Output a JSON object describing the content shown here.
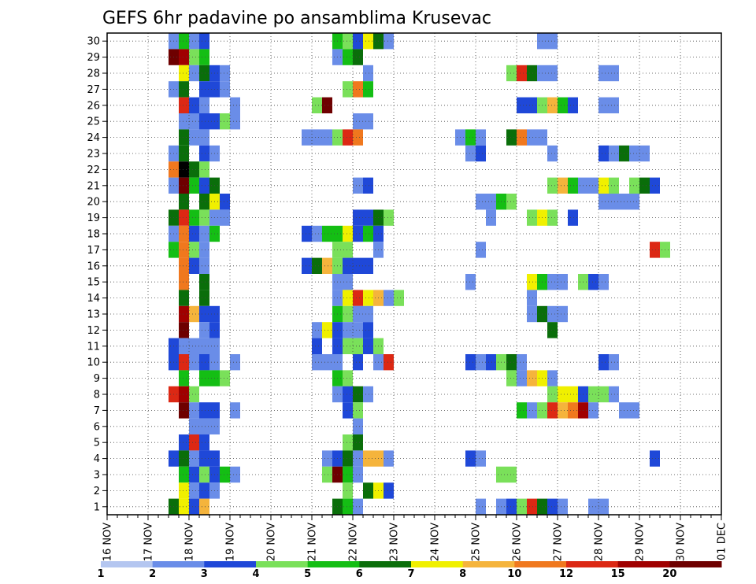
{
  "chart_data": {
    "type": "heatmap",
    "title": "GEFS 6hr padavine po ansamblima Krusevac",
    "x_tick_labels": [
      "16 NOV",
      "17 NOV",
      "18 NOV",
      "19 NOV",
      "20 NOV",
      "21 NOV",
      "22 NOV",
      "23 NOV",
      "24 NOV",
      "25 NOV",
      "26 NOV",
      "27 NOV",
      "28 NOV",
      "29 NOV",
      "30 NOV",
      "01 DEC"
    ],
    "y_tick_labels": [
      "1",
      "2",
      "3",
      "4",
      "5",
      "6",
      "7",
      "8",
      "9",
      "10",
      "11",
      "12",
      "13",
      "14",
      "15",
      "16",
      "17",
      "18",
      "19",
      "20",
      "21",
      "22",
      "23",
      "24",
      "25",
      "26",
      "27",
      "28",
      "29",
      "30"
    ],
    "xlim": [
      0,
      60
    ],
    "ylim": [
      0.5,
      30.5
    ],
    "grid": true,
    "colorbar": {
      "labels": [
        "1",
        "2",
        "3",
        "4",
        "5",
        "6",
        "7",
        "8",
        "10",
        "12",
        "15",
        "20"
      ],
      "colors": [
        "#b4c6f0",
        "#6a8de8",
        "#1f48d8",
        "#7ae05a",
        "#14be14",
        "#0a6e0a",
        "#f0f000",
        "#f5b43c",
        "#f0781e",
        "#dc2814",
        "#a00000",
        "#6e0000"
      ]
    },
    "cells": [
      [
        6,
        30,
        1
      ],
      [
        7,
        30,
        4
      ],
      [
        8,
        30,
        1
      ],
      [
        9,
        30,
        2
      ],
      [
        6,
        29,
        11
      ],
      [
        7,
        29,
        10
      ],
      [
        8,
        29,
        3
      ],
      [
        9,
        29,
        4
      ],
      [
        7,
        28,
        6
      ],
      [
        8,
        28,
        1
      ],
      [
        9,
        28,
        5
      ],
      [
        10,
        28,
        2
      ],
      [
        11,
        28,
        1
      ],
      [
        6,
        27,
        1
      ],
      [
        7,
        27,
        5
      ],
      [
        9,
        27,
        2
      ],
      [
        10,
        27,
        2
      ],
      [
        11,
        27,
        1
      ],
      [
        7,
        26,
        9
      ],
      [
        8,
        26,
        2
      ],
      [
        9,
        26,
        1
      ],
      [
        12,
        26,
        1
      ],
      [
        7,
        25,
        1
      ],
      [
        8,
        25,
        1
      ],
      [
        9,
        25,
        2
      ],
      [
        10,
        25,
        2
      ],
      [
        11,
        25,
        3
      ],
      [
        12,
        25,
        1
      ],
      [
        7,
        24,
        5
      ],
      [
        8,
        24,
        1
      ],
      [
        9,
        24,
        1
      ],
      [
        6,
        23,
        1
      ],
      [
        7,
        23,
        5
      ],
      [
        9,
        23,
        2
      ],
      [
        10,
        23,
        1
      ],
      [
        6,
        22,
        8
      ],
      [
        7,
        22,
        12
      ],
      [
        8,
        22,
        5
      ],
      [
        9,
        22,
        3
      ],
      [
        6,
        21,
        1
      ],
      [
        7,
        21,
        11
      ],
      [
        8,
        21,
        4
      ],
      [
        9,
        21,
        2
      ],
      [
        10,
        21,
        5
      ],
      [
        7,
        20,
        5
      ],
      [
        9,
        20,
        5
      ],
      [
        10,
        20,
        6
      ],
      [
        11,
        20,
        2
      ],
      [
        6,
        19,
        5
      ],
      [
        7,
        19,
        9
      ],
      [
        8,
        19,
        4
      ],
      [
        9,
        19,
        3
      ],
      [
        10,
        19,
        1
      ],
      [
        11,
        19,
        1
      ],
      [
        6,
        18,
        1
      ],
      [
        7,
        18,
        8
      ],
      [
        8,
        18,
        2
      ],
      [
        9,
        18,
        1
      ],
      [
        10,
        18,
        4
      ],
      [
        6,
        17,
        4
      ],
      [
        7,
        17,
        8
      ],
      [
        8,
        17,
        3
      ],
      [
        9,
        17,
        1
      ],
      [
        7,
        16,
        8
      ],
      [
        8,
        16,
        2
      ],
      [
        9,
        16,
        1
      ],
      [
        7,
        15,
        8
      ],
      [
        9,
        15,
        5
      ],
      [
        7,
        14,
        5
      ],
      [
        9,
        14,
        5
      ],
      [
        7,
        13,
        10
      ],
      [
        8,
        13,
        7
      ],
      [
        9,
        13,
        2
      ],
      [
        10,
        13,
        2
      ],
      [
        7,
        12,
        11
      ],
      [
        9,
        12,
        1
      ],
      [
        10,
        12,
        2
      ],
      [
        7,
        11,
        1
      ],
      [
        8,
        11,
        1
      ],
      [
        9,
        11,
        1
      ],
      [
        10,
        11,
        1
      ],
      [
        6,
        10,
        2
      ],
      [
        6,
        11,
        2
      ],
      [
        7,
        10,
        9
      ],
      [
        8,
        10,
        1
      ],
      [
        9,
        10,
        2
      ],
      [
        10,
        10,
        1
      ],
      [
        12,
        10,
        1
      ],
      [
        7,
        9,
        4
      ],
      [
        9,
        9,
        4
      ],
      [
        10,
        9,
        4
      ],
      [
        11,
        9,
        3
      ],
      [
        6,
        8,
        9
      ],
      [
        7,
        8,
        10
      ],
      [
        8,
        8,
        3
      ],
      [
        7,
        7,
        11
      ],
      [
        8,
        7,
        1
      ],
      [
        9,
        7,
        2
      ],
      [
        10,
        7,
        2
      ],
      [
        12,
        7,
        1
      ],
      [
        8,
        6,
        1
      ],
      [
        9,
        6,
        1
      ],
      [
        10,
        6,
        1
      ],
      [
        7,
        5,
        2
      ],
      [
        8,
        5,
        9
      ],
      [
        9,
        5,
        2
      ],
      [
        6,
        4,
        2
      ],
      [
        7,
        4,
        5
      ],
      [
        8,
        4,
        1
      ],
      [
        9,
        4,
        2
      ],
      [
        10,
        4,
        2
      ],
      [
        7,
        3,
        4
      ],
      [
        8,
        3,
        2
      ],
      [
        9,
        3,
        3
      ],
      [
        10,
        3,
        2
      ],
      [
        11,
        3,
        4
      ],
      [
        12,
        3,
        1
      ],
      [
        7,
        2,
        6
      ],
      [
        8,
        2,
        1
      ],
      [
        9,
        2,
        2
      ],
      [
        10,
        2,
        1
      ],
      [
        6,
        1,
        5
      ],
      [
        7,
        1,
        6
      ],
      [
        8,
        1,
        2
      ],
      [
        9,
        1,
        7
      ],
      [
        22,
        30,
        4
      ],
      [
        23,
        30,
        3
      ],
      [
        24,
        30,
        2
      ],
      [
        25,
        30,
        6
      ],
      [
        26,
        30,
        5
      ],
      [
        27,
        30,
        1
      ],
      [
        22,
        29,
        1
      ],
      [
        23,
        29,
        4
      ],
      [
        24,
        29,
        5
      ],
      [
        25,
        28,
        1
      ],
      [
        23,
        27,
        3
      ],
      [
        24,
        27,
        8
      ],
      [
        25,
        27,
        4
      ],
      [
        20,
        26,
        3
      ],
      [
        21,
        26,
        11
      ],
      [
        24,
        25,
        1
      ],
      [
        25,
        25,
        1
      ],
      [
        19,
        24,
        1
      ],
      [
        20,
        24,
        1
      ],
      [
        21,
        24,
        1
      ],
      [
        22,
        24,
        3
      ],
      [
        23,
        24,
        9
      ],
      [
        24,
        24,
        8
      ],
      [
        24,
        21,
        1
      ],
      [
        25,
        21,
        2
      ],
      [
        24,
        19,
        2
      ],
      [
        25,
        19,
        2
      ],
      [
        26,
        19,
        5
      ],
      [
        27,
        19,
        3
      ],
      [
        19,
        18,
        2
      ],
      [
        20,
        18,
        1
      ],
      [
        21,
        18,
        4
      ],
      [
        22,
        18,
        4
      ],
      [
        23,
        18,
        6
      ],
      [
        24,
        18,
        2
      ],
      [
        25,
        18,
        4
      ],
      [
        26,
        18,
        2
      ],
      [
        22,
        17,
        3
      ],
      [
        23,
        17,
        3
      ],
      [
        26,
        17,
        1
      ],
      [
        19,
        16,
        2
      ],
      [
        20,
        16,
        5
      ],
      [
        21,
        16,
        7
      ],
      [
        22,
        16,
        3
      ],
      [
        23,
        16,
        2
      ],
      [
        24,
        16,
        2
      ],
      [
        25,
        16,
        2
      ],
      [
        22,
        15,
        1
      ],
      [
        23,
        15,
        1
      ],
      [
        22,
        14,
        1
      ],
      [
        23,
        14,
        6
      ],
      [
        24,
        14,
        9
      ],
      [
        25,
        14,
        6
      ],
      [
        26,
        14,
        7
      ],
      [
        27,
        14,
        1
      ],
      [
        28,
        14,
        3
      ],
      [
        22,
        13,
        4
      ],
      [
        23,
        13,
        3
      ],
      [
        24,
        13,
        1
      ],
      [
        25,
        13,
        1
      ],
      [
        20,
        12,
        1
      ],
      [
        21,
        12,
        6
      ],
      [
        22,
        12,
        2
      ],
      [
        23,
        12,
        1
      ],
      [
        24,
        12,
        1
      ],
      [
        25,
        12,
        2
      ],
      [
        20,
        11,
        2
      ],
      [
        22,
        11,
        2
      ],
      [
        23,
        11,
        3
      ],
      [
        24,
        11,
        3
      ],
      [
        25,
        11,
        2
      ],
      [
        26,
        11,
        3
      ],
      [
        20,
        10,
        1
      ],
      [
        21,
        10,
        1
      ],
      [
        22,
        10,
        1
      ],
      [
        24,
        10,
        2
      ],
      [
        26,
        10,
        1
      ],
      [
        27,
        10,
        9
      ],
      [
        22,
        9,
        4
      ],
      [
        23,
        9,
        3
      ],
      [
        22,
        8,
        1
      ],
      [
        23,
        8,
        2
      ],
      [
        24,
        8,
        5
      ],
      [
        25,
        8,
        1
      ],
      [
        23,
        7,
        2
      ],
      [
        24,
        7,
        3
      ],
      [
        24,
        6,
        1
      ],
      [
        23,
        5,
        3
      ],
      [
        24,
        5,
        5
      ],
      [
        21,
        4,
        1
      ],
      [
        22,
        4,
        2
      ],
      [
        23,
        4,
        5
      ],
      [
        24,
        4,
        1
      ],
      [
        25,
        4,
        7
      ],
      [
        26,
        4,
        7
      ],
      [
        27,
        4,
        1
      ],
      [
        21,
        3,
        3
      ],
      [
        22,
        3,
        11
      ],
      [
        23,
        3,
        4
      ],
      [
        24,
        3,
        1
      ],
      [
        23,
        2,
        3
      ],
      [
        25,
        2,
        5
      ],
      [
        26,
        2,
        6
      ],
      [
        27,
        2,
        2
      ],
      [
        22,
        1,
        5
      ],
      [
        23,
        1,
        4
      ],
      [
        24,
        1,
        1
      ],
      [
        42,
        30,
        1
      ],
      [
        43,
        30,
        1
      ],
      [
        39,
        28,
        3
      ],
      [
        40,
        28,
        9
      ],
      [
        41,
        28,
        5
      ],
      [
        42,
        28,
        1
      ],
      [
        43,
        28,
        1
      ],
      [
        48,
        28,
        1
      ],
      [
        49,
        28,
        1
      ],
      [
        40,
        26,
        2
      ],
      [
        41,
        26,
        2
      ],
      [
        42,
        26,
        3
      ],
      [
        43,
        26,
        7
      ],
      [
        44,
        26,
        4
      ],
      [
        45,
        26,
        2
      ],
      [
        48,
        26,
        1
      ],
      [
        49,
        26,
        1
      ],
      [
        34,
        24,
        1
      ],
      [
        35,
        24,
        4
      ],
      [
        36,
        24,
        1
      ],
      [
        39,
        24,
        5
      ],
      [
        40,
        24,
        8
      ],
      [
        41,
        24,
        1
      ],
      [
        42,
        24,
        1
      ],
      [
        35,
        23,
        1
      ],
      [
        36,
        23,
        2
      ],
      [
        43,
        23,
        1
      ],
      [
        48,
        23,
        2
      ],
      [
        49,
        23,
        1
      ],
      [
        50,
        23,
        5
      ],
      [
        51,
        23,
        1
      ],
      [
        52,
        23,
        1
      ],
      [
        43,
        21,
        3
      ],
      [
        44,
        21,
        7
      ],
      [
        45,
        21,
        4
      ],
      [
        46,
        21,
        1
      ],
      [
        47,
        21,
        1
      ],
      [
        48,
        21,
        6
      ],
      [
        49,
        21,
        3
      ],
      [
        51,
        21,
        3
      ],
      [
        52,
        21,
        5
      ],
      [
        53,
        21,
        2
      ],
      [
        36,
        20,
        1
      ],
      [
        37,
        20,
        1
      ],
      [
        38,
        20,
        4
      ],
      [
        39,
        20,
        3
      ],
      [
        48,
        20,
        1
      ],
      [
        49,
        20,
        1
      ],
      [
        50,
        20,
        1
      ],
      [
        51,
        20,
        1
      ],
      [
        37,
        19,
        1
      ],
      [
        41,
        19,
        3
      ],
      [
        42,
        19,
        6
      ],
      [
        43,
        19,
        3
      ],
      [
        45,
        19,
        2
      ],
      [
        36,
        17,
        1
      ],
      [
        53,
        17,
        9
      ],
      [
        54,
        17,
        3
      ],
      [
        35,
        15,
        1
      ],
      [
        41,
        15,
        6
      ],
      [
        42,
        15,
        4
      ],
      [
        43,
        15,
        1
      ],
      [
        44,
        15,
        1
      ],
      [
        46,
        15,
        3
      ],
      [
        47,
        15,
        2
      ],
      [
        48,
        15,
        1
      ],
      [
        41,
        14,
        1
      ],
      [
        41,
        13,
        1
      ],
      [
        42,
        13,
        5
      ],
      [
        43,
        13,
        1
      ],
      [
        44,
        13,
        1
      ],
      [
        43,
        12,
        5
      ],
      [
        35,
        10,
        2
      ],
      [
        36,
        10,
        1
      ],
      [
        37,
        10,
        2
      ],
      [
        38,
        10,
        3
      ],
      [
        39,
        10,
        5
      ],
      [
        40,
        10,
        1
      ],
      [
        48,
        10,
        2
      ],
      [
        49,
        10,
        1
      ],
      [
        39,
        9,
        3
      ],
      [
        40,
        9,
        1
      ],
      [
        41,
        9,
        7
      ],
      [
        42,
        9,
        6
      ],
      [
        43,
        9,
        1
      ],
      [
        43,
        8,
        3
      ],
      [
        44,
        8,
        6
      ],
      [
        45,
        8,
        6
      ],
      [
        46,
        8,
        2
      ],
      [
        47,
        8,
        3
      ],
      [
        48,
        8,
        3
      ],
      [
        49,
        8,
        1
      ],
      [
        40,
        7,
        4
      ],
      [
        41,
        7,
        1
      ],
      [
        42,
        7,
        3
      ],
      [
        43,
        7,
        9
      ],
      [
        44,
        7,
        7
      ],
      [
        45,
        7,
        8
      ],
      [
        46,
        7,
        10
      ],
      [
        47,
        7,
        1
      ],
      [
        50,
        7,
        1
      ],
      [
        51,
        7,
        1
      ],
      [
        35,
        4,
        2
      ],
      [
        36,
        4,
        1
      ],
      [
        53,
        4,
        2
      ],
      [
        38,
        3,
        3
      ],
      [
        39,
        3,
        3
      ],
      [
        36,
        1,
        1
      ],
      [
        38,
        1,
        1
      ],
      [
        39,
        1,
        2
      ],
      [
        40,
        1,
        3
      ],
      [
        41,
        1,
        9
      ],
      [
        42,
        1,
        5
      ],
      [
        43,
        1,
        2
      ],
      [
        44,
        1,
        1
      ],
      [
        47,
        1,
        1
      ],
      [
        48,
        1,
        1
      ]
    ]
  }
}
